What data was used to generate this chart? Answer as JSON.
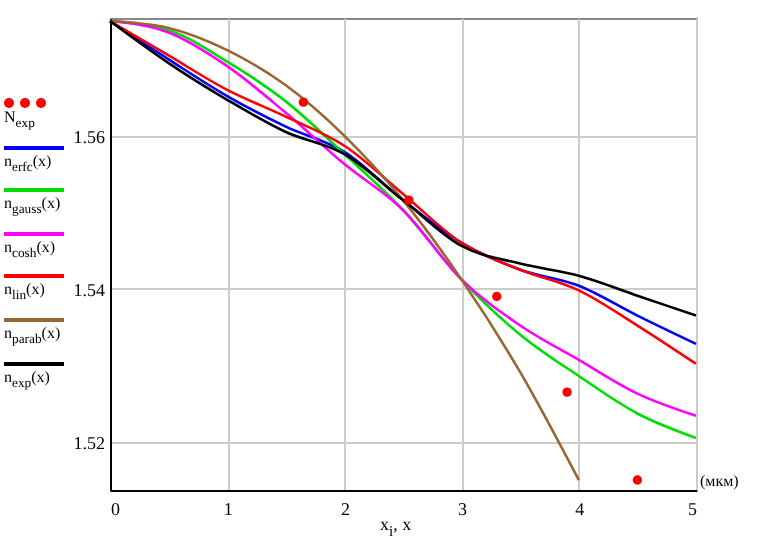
{
  "chart_data": {
    "type": "line",
    "xlabel": "x$_{i}$, x",
    "annotations": [
      "(мкм)"
    ],
    "xlim": [
      0,
      5
    ],
    "xticks": [
      0,
      1,
      2,
      3,
      4,
      5
    ],
    "ylim": [
      1.5137,
      1.5754
    ],
    "yticks": [
      1.52,
      1.54,
      1.56
    ],
    "grid": true,
    "legend": "left",
    "line_style": "solid",
    "series": [
      {
        "name": "N$_{exp}$",
        "type": "scatter",
        "marker": "circle",
        "color": "#ff0000",
        "x": [
          1.65,
          2.55,
          3.3,
          3.9,
          4.5
        ],
        "values": [
          1.5644,
          1.5516,
          1.539,
          1.5265,
          1.515
        ]
      },
      {
        "name": "n$_{erfc}$(x)",
        "color": "#0000ff",
        "x": [
          0,
          0.5,
          1,
          1.5,
          2,
          2.5,
          3,
          3.5,
          4,
          4.5,
          5
        ],
        "values": [
          1.575,
          1.57,
          1.5652,
          1.5612,
          1.5579,
          1.5516,
          1.546,
          1.5425,
          1.5404,
          1.5365,
          1.5328
        ]
      },
      {
        "name": "n$_{gauss}$(x)",
        "color": "#00dd00",
        "x": [
          0,
          0.5,
          1,
          1.5,
          2,
          2.5,
          3,
          3.5,
          4,
          4.5,
          5
        ],
        "values": [
          1.575,
          1.5738,
          1.5697,
          1.5645,
          1.5576,
          1.5503,
          1.5412,
          1.534,
          1.5286,
          1.5237,
          1.5205
        ]
      },
      {
        "name": "n$_{cosh}$(x)",
        "color": "#ff00ff",
        "x": [
          0,
          0.5,
          1,
          1.5,
          2,
          2.5,
          3,
          3.5,
          4,
          4.5,
          5
        ],
        "values": [
          1.575,
          1.5735,
          1.5691,
          1.563,
          1.5563,
          1.5503,
          1.5412,
          1.5352,
          1.5307,
          1.5263,
          1.5234
        ]
      },
      {
        "name": "n$_{lin}$(x)",
        "color": "#ff0000",
        "x": [
          0,
          0.5,
          1,
          1.5,
          2,
          2.5,
          3,
          3.5,
          4,
          4.5,
          5
        ],
        "values": [
          1.575,
          1.5705,
          1.566,
          1.5625,
          1.5587,
          1.5524,
          1.546,
          1.5425,
          1.5398,
          1.5352,
          1.5302
        ]
      },
      {
        "name": "n$_{parab}$(x)",
        "color": "#996633",
        "x": [
          0,
          0.5,
          1,
          1.5,
          2,
          2.5,
          3,
          3.5,
          4
        ],
        "values": [
          1.575,
          1.5741,
          1.5712,
          1.5666,
          1.56,
          1.5516,
          1.5412,
          1.5291,
          1.515
        ]
      },
      {
        "name": "n$_{exp}$(x)",
        "color": "#000000",
        "x": [
          0,
          0.5,
          1,
          1.5,
          2,
          2.5,
          3,
          3.5,
          4,
          4.5,
          5
        ],
        "values": [
          1.575,
          1.5695,
          1.5647,
          1.5605,
          1.5576,
          1.5516,
          1.5456,
          1.5433,
          1.5417,
          1.5391,
          1.5365
        ]
      }
    ]
  }
}
